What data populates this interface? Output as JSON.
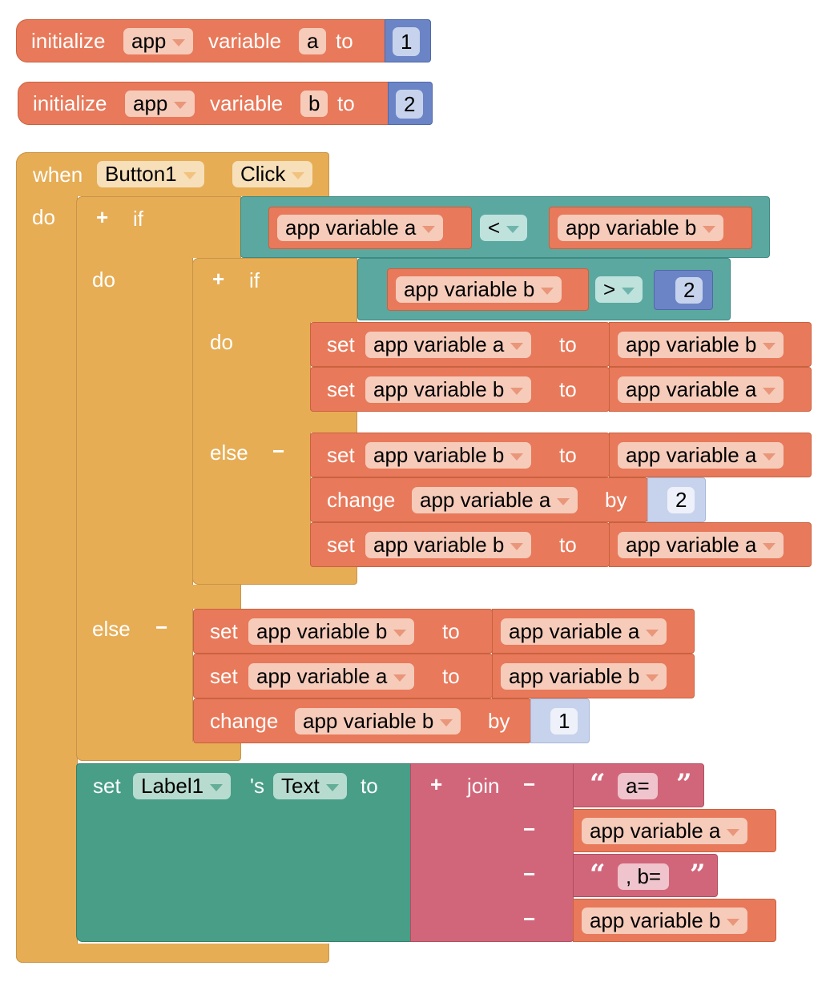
{
  "init_blocks": [
    {
      "keyword": "initialize",
      "scope": "app",
      "variable_label": "variable",
      "name": "a",
      "to": "to",
      "value": "1"
    },
    {
      "keyword": "initialize",
      "scope": "app",
      "variable_label": "variable",
      "name": "b",
      "to": "to",
      "value": "2"
    }
  ],
  "event": {
    "when": "when",
    "component": "Button1",
    "event": "Click",
    "do": "do"
  },
  "outer_if": {
    "plus": "+",
    "if": "if",
    "do": "do",
    "else": "else",
    "minus": "−",
    "condition": {
      "left": "app variable a",
      "op": "<",
      "right": "app variable b"
    }
  },
  "inner_if": {
    "plus": "+",
    "if": "if",
    "do": "do",
    "else": "else",
    "minus": "−",
    "condition": {
      "left": "app variable b",
      "op": ">",
      "right": "2"
    }
  },
  "inner_do": [
    {
      "keyword": "set",
      "var": "app variable a",
      "to": "to",
      "value": "app variable b"
    },
    {
      "keyword": "set",
      "var": "app variable b",
      "to": "to",
      "value": "app variable a"
    }
  ],
  "inner_else": [
    {
      "keyword": "set",
      "var": "app variable b",
      "to": "to",
      "value": "app variable a"
    },
    {
      "keyword": "change",
      "var": "app variable a",
      "by": "by",
      "value": "2"
    },
    {
      "keyword": "set",
      "var": "app variable b",
      "to": "to",
      "value": "app variable a"
    }
  ],
  "outer_else": [
    {
      "keyword": "set",
      "var": "app variable b",
      "to": "to",
      "value": "app variable a"
    },
    {
      "keyword": "set",
      "var": "app variable a",
      "to": "to",
      "value": "app variable b"
    },
    {
      "keyword": "change",
      "var": "app variable b",
      "by": "by",
      "value": "1"
    }
  ],
  "label_set": {
    "keyword": "set",
    "component": "Label1",
    "possessive": "'s",
    "property": "Text",
    "to": "to"
  },
  "join": {
    "plus": "+",
    "label": "join",
    "minus": "−",
    "open_quote": "“",
    "close_quote": "”",
    "items": [
      {
        "text": "a="
      },
      {
        "var": "app variable a"
      },
      {
        "text": ", b="
      },
      {
        "var": "app variable b"
      }
    ]
  },
  "colors": {
    "variables": "#e8795a",
    "control": "#e6ad55",
    "logic": "#5ba8a0",
    "math": "#6b84c6",
    "component": "#489e86",
    "text": "#d1667a"
  }
}
